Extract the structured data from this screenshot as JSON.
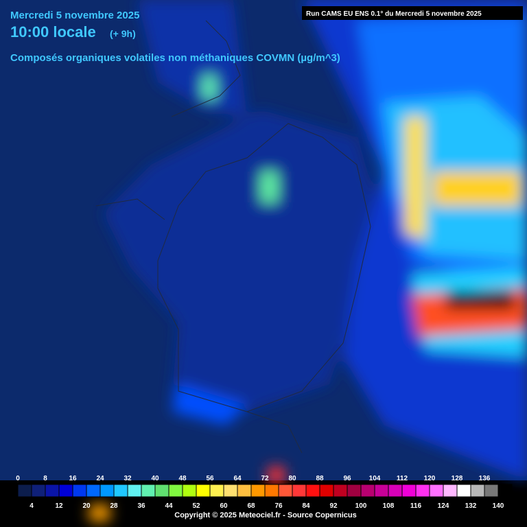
{
  "header": {
    "date": "Mercredi 5 novembre 2025",
    "time": "10:00 locale",
    "offset": "(+ 9h)",
    "variable": "Composés organiques volatiles non méthaniques COVMN (µg/m^3)",
    "run": "Run CAMS EU ENS 0.1° du Mercredi 5 novembre 2025"
  },
  "colorbar": {
    "ticks": [
      0,
      4,
      8,
      12,
      16,
      20,
      24,
      28,
      32,
      36,
      40,
      44,
      48,
      52,
      56,
      60,
      64,
      68,
      72,
      76,
      80,
      84,
      88,
      92,
      96,
      100,
      104,
      108,
      112,
      116,
      120,
      124,
      128,
      132,
      136,
      140
    ],
    "colors": [
      "#0c1d4c",
      "#0f2078",
      "#0a14a8",
      "#0000d8",
      "#0038f0",
      "#0068ff",
      "#0098ff",
      "#20c8ff",
      "#60f0f0",
      "#60f0b0",
      "#60e070",
      "#80f840",
      "#b0ff10",
      "#ffff00",
      "#fff050",
      "#ffe070",
      "#ffc040",
      "#ff9800",
      "#ff7800",
      "#ff5838",
      "#ff3838",
      "#ff1010",
      "#e00000",
      "#c00020",
      "#a00040",
      "#b80070",
      "#c80098",
      "#d800b8",
      "#f000d8",
      "#ff30f0",
      "#ff70ff",
      "#ffb8ff",
      "#ffffff",
      "#b8b8b8",
      "#787878",
      "#000000"
    ]
  },
  "footer": {
    "copyright": "Copyright © 2025 Meteociel.fr - Source Copernicus"
  }
}
